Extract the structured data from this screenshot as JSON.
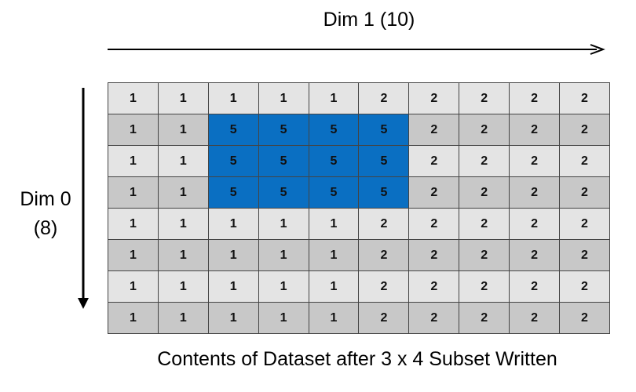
{
  "dim1_label": "Dim 1 (10)",
  "dim0_label_line1": "Dim 0",
  "dim0_label_line2": "(8)",
  "caption": "Contents of Dataset after 3 x 4 Subset Written",
  "colors": {
    "row_light": "#e4e4e4",
    "row_dark": "#c8c8c8",
    "highlight": "#0a6fc2"
  },
  "grid": [
    [
      "1",
      "1",
      "1",
      "1",
      "1",
      "2",
      "2",
      "2",
      "2",
      "2"
    ],
    [
      "1",
      "1",
      "5",
      "5",
      "5",
      "5",
      "2",
      "2",
      "2",
      "2"
    ],
    [
      "1",
      "1",
      "5",
      "5",
      "5",
      "5",
      "2",
      "2",
      "2",
      "2"
    ],
    [
      "1",
      "1",
      "5",
      "5",
      "5",
      "5",
      "2",
      "2",
      "2",
      "2"
    ],
    [
      "1",
      "1",
      "1",
      "1",
      "1",
      "2",
      "2",
      "2",
      "2",
      "2"
    ],
    [
      "1",
      "1",
      "1",
      "1",
      "1",
      "2",
      "2",
      "2",
      "2",
      "2"
    ],
    [
      "1",
      "1",
      "1",
      "1",
      "1",
      "2",
      "2",
      "2",
      "2",
      "2"
    ],
    [
      "1",
      "1",
      "1",
      "1",
      "1",
      "2",
      "2",
      "2",
      "2",
      "2"
    ]
  ],
  "highlight_value": "5"
}
